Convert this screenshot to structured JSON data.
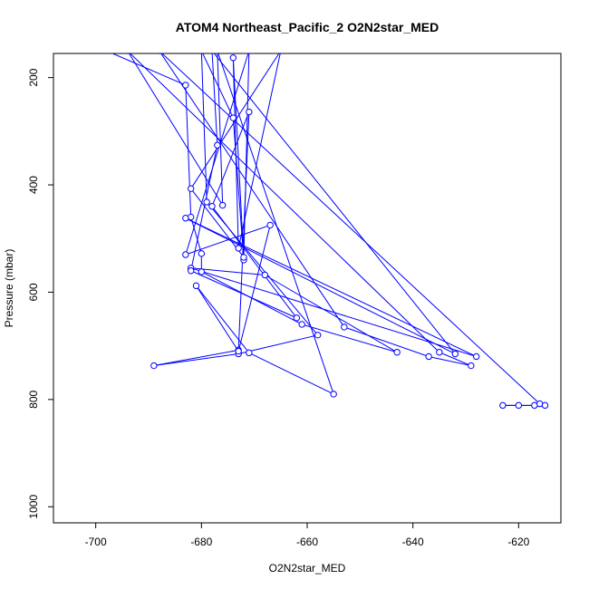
{
  "chart_data": {
    "type": "scatter",
    "title": "ATOM4 Northeast_Pacific_2 O2N2star_MED",
    "xlabel": "O2N2star_MED",
    "ylabel": "Pressure (mbar)",
    "xlim": [
      -708,
      -612
    ],
    "ylim": [
      1030,
      155
    ],
    "y_inverted": true,
    "grid": false,
    "legend": "none",
    "x_ticks": [
      -700,
      -680,
      -660,
      -640,
      -620
    ],
    "y_ticks": [
      200,
      400,
      600,
      800,
      1000
    ],
    "series": [
      {
        "color": "#0000ff",
        "points": [
          {
            "x": -698,
            "y": 150
          },
          {
            "x": -683,
            "y": 214
          },
          {
            "x": -682,
            "y": 460
          },
          {
            "x": -680,
            "y": 528
          },
          {
            "x": -680,
            "y": 562
          },
          {
            "x": -661,
            "y": 660
          },
          {
            "x": -643,
            "y": 712
          },
          {
            "x": -668,
            "y": 568
          },
          {
            "x": -682,
            "y": 555
          },
          {
            "x": -628,
            "y": 720
          },
          {
            "x": -683,
            "y": 462
          },
          {
            "x": -632,
            "y": 715
          },
          {
            "x": -678,
            "y": 150
          },
          {
            "x": -677,
            "y": 326
          },
          {
            "x": -682,
            "y": 560
          },
          {
            "x": -662,
            "y": 648
          },
          {
            "x": -678,
            "y": 440
          },
          {
            "x": -671,
            "y": 264
          },
          {
            "x": -673,
            "y": 708
          },
          {
            "x": -689,
            "y": 737
          },
          {
            "x": -673,
            "y": 715
          },
          {
            "x": -658,
            "y": 680
          },
          {
            "x": -679,
            "y": 432
          },
          {
            "x": -680,
            "y": 150
          },
          {
            "x": -674,
            "y": 275
          },
          {
            "x": -672,
            "y": 540
          },
          {
            "x": -674,
            "y": 163
          },
          {
            "x": -673,
            "y": 518
          },
          {
            "x": -665,
            "y": 150
          },
          {
            "x": -682,
            "y": 407
          },
          {
            "x": -672,
            "y": 535
          },
          {
            "x": -671,
            "y": 150
          },
          {
            "x": -683,
            "y": 530
          },
          {
            "x": -667,
            "y": 475
          },
          {
            "x": -673,
            "y": 710
          },
          {
            "x": -681,
            "y": 588
          },
          {
            "x": -671,
            "y": 713
          },
          {
            "x": -655,
            "y": 790
          },
          {
            "x": -677,
            "y": 150
          },
          {
            "x": -676,
            "y": 438
          },
          {
            "x": -694,
            "y": 150
          },
          {
            "x": -635,
            "y": 712
          },
          {
            "x": -629,
            "y": 737
          },
          {
            "x": -637,
            "y": 720
          },
          {
            "x": -653,
            "y": 665
          },
          {
            "x": -688,
            "y": 150
          },
          {
            "x": -616,
            "y": 808
          },
          {
            "x": -617,
            "y": 811
          },
          {
            "x": -620,
            "y": 811
          },
          {
            "x": -623,
            "y": 811
          },
          {
            "x": -615,
            "y": 811
          }
        ]
      }
    ]
  }
}
